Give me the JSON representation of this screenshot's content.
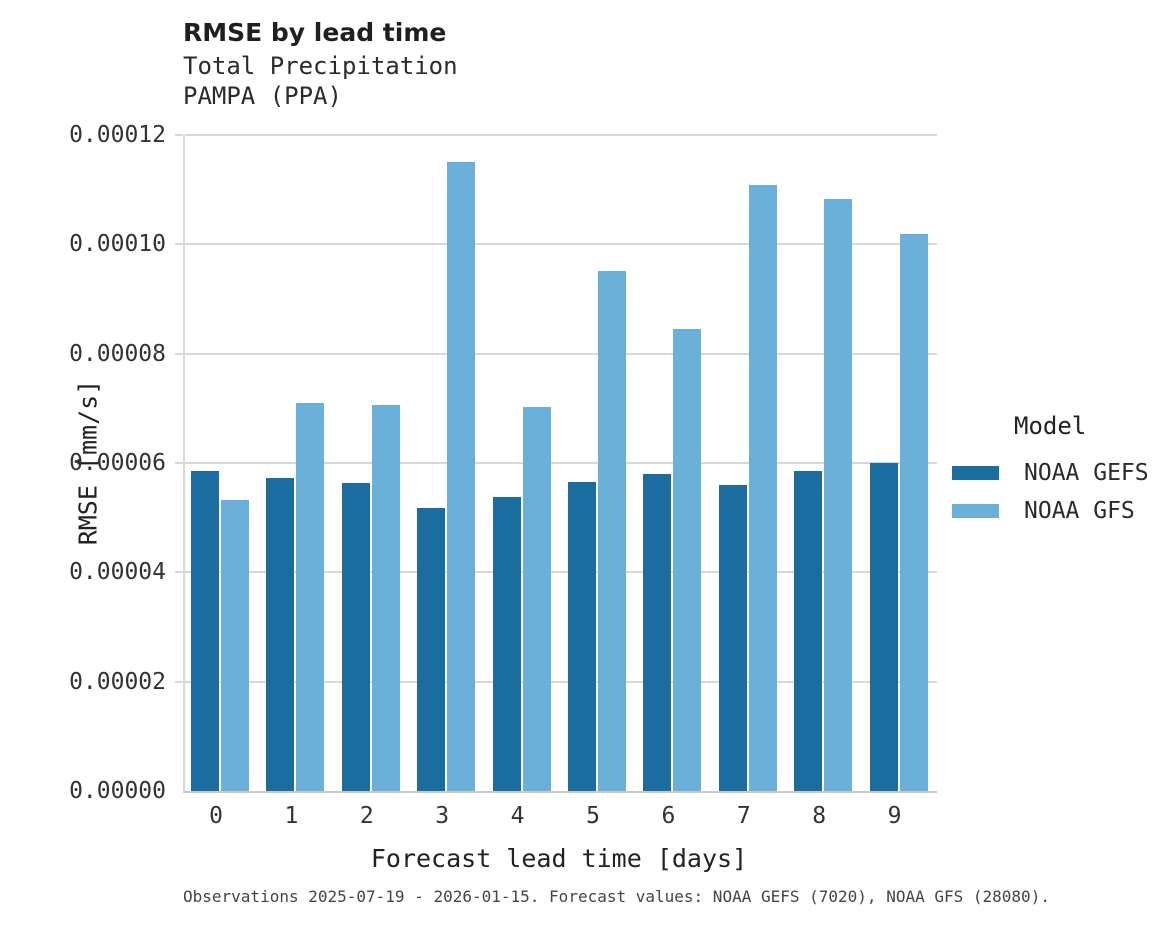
{
  "header": {
    "title": "RMSE by lead time",
    "subtitle_line1": "Total Precipitation",
    "subtitle_line2": "PAMPA (PPA)"
  },
  "legend": {
    "title": "Model",
    "items": [
      {
        "label": "NOAA GEFS",
        "color": "#1a6d9e"
      },
      {
        "label": "NOAA GFS",
        "color": "#6bb0d8"
      }
    ]
  },
  "footer": {
    "caption": "Observations 2025-07-19 - 2026-01-15. Forecast values: NOAA GEFS (7020), NOAA GFS (28080)."
  },
  "colors": {
    "gefs": "#1a6d9e",
    "gfs": "#6bb0d8",
    "gridline": "#d8d8d8",
    "baseline": "#c9c9c9"
  },
  "chart_data": {
    "type": "bar",
    "title": "RMSE by lead time",
    "subtitle": [
      "Total Precipitation",
      "PAMPA (PPA)"
    ],
    "xlabel": "Forecast lead time [days]",
    "ylabel": "RMSE [mm/s]",
    "categories": [
      "0",
      "1",
      "2",
      "3",
      "4",
      "5",
      "6",
      "7",
      "8",
      "9"
    ],
    "series": [
      {
        "name": "NOAA GEFS",
        "color": "#1a6d9e",
        "values": [
          5.85e-05,
          5.73e-05,
          5.63e-05,
          5.18e-05,
          5.37e-05,
          5.65e-05,
          5.79e-05,
          5.6e-05,
          5.85e-05,
          6e-05
        ]
      },
      {
        "name": "NOAA GFS",
        "color": "#6bb0d8",
        "values": [
          5.33e-05,
          7.09e-05,
          7.07e-05,
          0.000115,
          7.02e-05,
          9.51e-05,
          8.46e-05,
          0.0001108,
          0.0001083,
          0.0001018
        ]
      }
    ],
    "ylim": [
      0,
      0.00012
    ],
    "yticks": [
      0,
      2e-05,
      4e-05,
      6e-05,
      8e-05,
      0.0001,
      0.00012
    ],
    "ytick_labels": [
      "0.00000",
      "0.00002",
      "0.00004",
      "0.00006",
      "0.00008",
      "0.00010",
      "0.00012"
    ],
    "grid": "horizontal",
    "legend_title": "Model",
    "legend_position": "right",
    "annotation": "Observations 2025-07-19 - 2026-01-15. Forecast values: NOAA GEFS (7020), NOAA GFS (28080)."
  }
}
